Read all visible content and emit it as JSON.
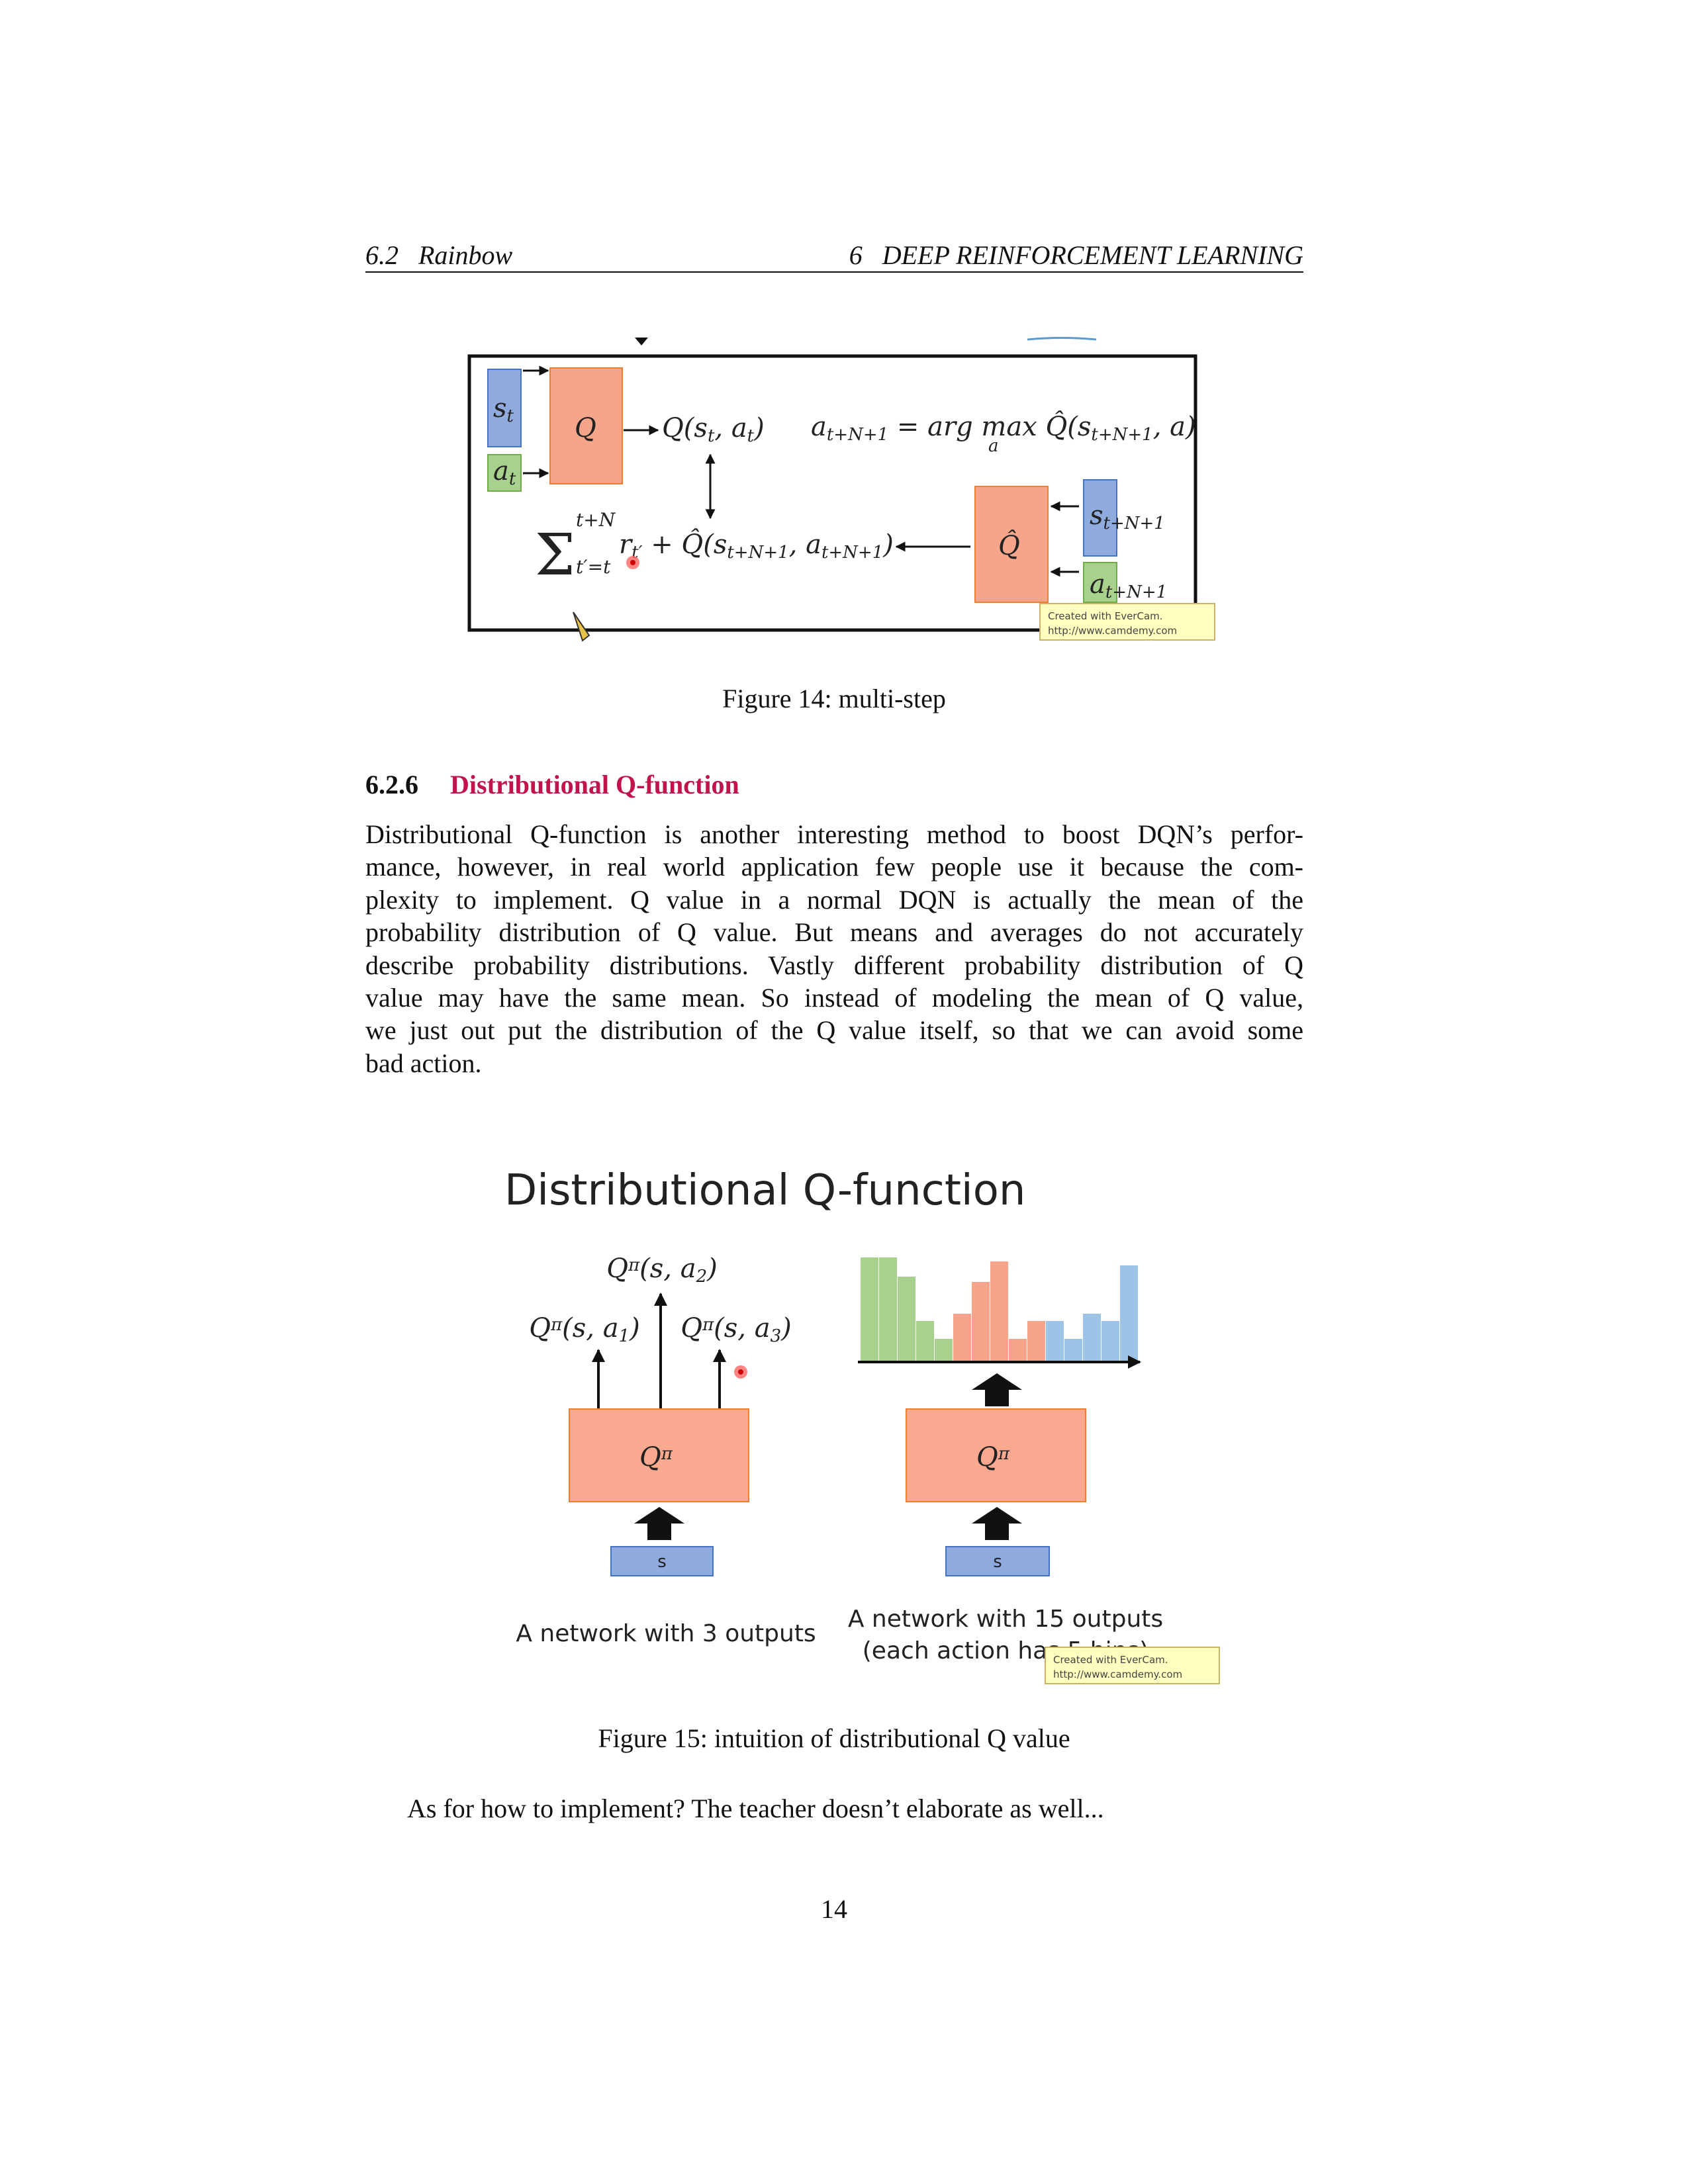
{
  "header": {
    "section_number": "6.2",
    "section_title": "Rainbow",
    "chapter_number": "6",
    "chapter_title": "DEEP REINFORCEMENT LEARNING"
  },
  "figure_14": {
    "s_t": [
      "s",
      "t"
    ],
    "a_t": [
      "a",
      "t"
    ],
    "q": "Q",
    "q_output": [
      "Q(s",
      "t",
      ", a",
      "t",
      ")"
    ],
    "argmax": [
      "a",
      "t+N+1",
      " = arg max Q̂(s",
      "t+N+1",
      ", a)"
    ],
    "argmax_under": "a",
    "sum_symbol": "Σ",
    "sum_upper": "t+N",
    "sum_lower": "t′=t",
    "target": [
      "r",
      "t′",
      " + Q̂(s",
      "t+N+1",
      ", a",
      "t+N+1",
      ")"
    ],
    "q_hat": "Q̂",
    "s_next": [
      "s",
      "t+N+1"
    ],
    "a_next": [
      "a",
      "t+N+1"
    ],
    "watermark": [
      "Created with EverCam.",
      "http://www.camdemy.com"
    ],
    "caption": "Figure 14: multi-step"
  },
  "section": {
    "number": "6.2.6",
    "title": "Distributional Q-function"
  },
  "paragraph": [
    "Distributional Q-function is another interesting method to boost DQN’s perfor-",
    "mance, however, in real world application few people use it because the com-",
    "plexity to implement.  Q value in a normal DQN is actually the mean of the",
    "probability distribution of Q value. But means and averages do not accurately",
    "describe probability distributions. Vastly different probability distribution of Q",
    "value may have the same mean. So instead of modeling the mean of Q value,",
    "we just out put the distribution of the Q value itself, so that we can avoid some",
    "bad action."
  ],
  "figure_15": {
    "title": "Distributional Q-function",
    "q_a1": [
      "Q",
      "π",
      "(s, a",
      "1",
      ")"
    ],
    "q_a2": [
      "Q",
      "π",
      "(s, a",
      "2",
      ")"
    ],
    "q_a3": [
      "Q",
      "π",
      "(s, a",
      "3",
      ")"
    ],
    "network_left": [
      "Q",
      "π"
    ],
    "network_right": [
      "Q",
      "π"
    ],
    "input_left": "s",
    "input_right": "s",
    "caption_left": "A network with 3 outputs",
    "caption_right": [
      "A network with 15 outputs",
      "(each action has 5 bins)"
    ],
    "watermark": [
      "Created with EverCam.",
      "http://www.camdemy.com"
    ],
    "caption": "Figure 15: intuition of distributional Q value"
  },
  "closing": "As for how to implement? The teacher doesn’t elaborate as well...",
  "page_number": "14"
}
